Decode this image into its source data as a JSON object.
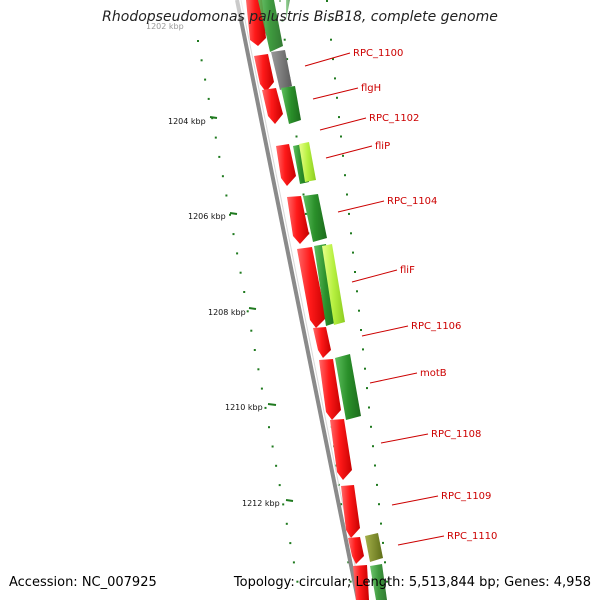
{
  "map": {
    "title": "Rhodopseudomonas palustris BisB18, complete genome",
    "accession": "Accession: NC_007925",
    "summary": "Topology: circular; Length: 5,513,844 bp; Genes: 4,958",
    "faded_tick_label": "1202 kbp",
    "ticks": [
      "1204 kbp",
      "1206 kbp",
      "1208 kbp",
      "1210 kbp",
      "1212 kbp"
    ],
    "gene_labels": [
      "RPC_1100",
      "flgH",
      "RPC_1102",
      "fliP",
      "RPC_1104",
      "fliF",
      "RPC_1106",
      "motB",
      "RPC_1108",
      "RPC_1109",
      "RPC_1110"
    ],
    "colors": {
      "forward_cds": "#2a8f2a",
      "reverse_cds": "#e00000",
      "light_cds": "#b6f040",
      "gray_cds": "#7a7a7a",
      "olive_cds": "#7f8f2a",
      "label_red": "#cc0000",
      "tick_green": "#1f7a1f"
    }
  }
}
